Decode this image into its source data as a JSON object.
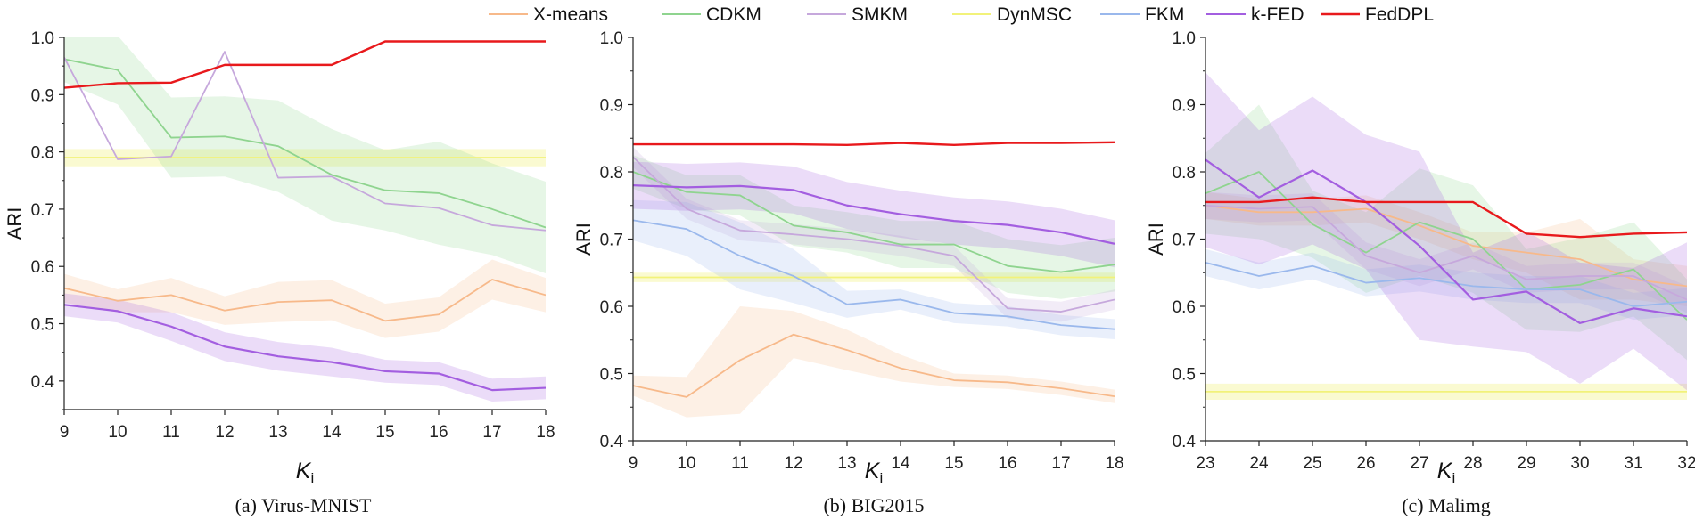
{
  "legend": [
    {
      "name": "X-means",
      "color": "#f7b98a"
    },
    {
      "name": "CDKM",
      "color": "#8fd48f"
    },
    {
      "name": "SMKM",
      "color": "#c6a8dc"
    },
    {
      "name": "DynMSC",
      "color": "#f2f27a"
    },
    {
      "name": "FKM",
      "color": "#9ab8ec"
    },
    {
      "name": "k-FED",
      "color": "#a35ee0"
    },
    {
      "name": "FedDPL",
      "color": "#e8191c"
    }
  ],
  "chart_data": [
    {
      "type": "line",
      "caption": "(a) Virus-MNIST",
      "xlabel": "K",
      "xlabel_sub": "i",
      "ylabel": "ARI",
      "x": [
        9,
        10,
        11,
        12,
        13,
        14,
        15,
        16,
        17,
        18
      ],
      "xlim": [
        9,
        18
      ],
      "ylim": [
        0.35,
        1.0
      ],
      "yticks": [
        0.4,
        0.5,
        0.6,
        0.7,
        0.8,
        0.9,
        1.0
      ],
      "series": [
        {
          "name": "X-means",
          "values": [
            0.562,
            0.54,
            0.55,
            0.523,
            0.538,
            0.541,
            0.505,
            0.516,
            0.577,
            0.55
          ],
          "band": [
            0.025,
            0.02,
            0.03,
            0.025,
            0.035,
            0.035,
            0.03,
            0.03,
            0.035,
            0.03
          ]
        },
        {
          "name": "CDKM",
          "values": [
            0.962,
            0.943,
            0.825,
            0.827,
            0.81,
            0.76,
            0.733,
            0.728,
            0.7,
            0.668
          ],
          "band": [
            0.04,
            0.06,
            0.07,
            0.07,
            0.08,
            0.08,
            0.07,
            0.09,
            0.08,
            0.08
          ]
        },
        {
          "name": "SMKM",
          "values": [
            0.965,
            0.787,
            0.792,
            0.975,
            0.755,
            0.757,
            0.71,
            0.702,
            0.672,
            0.663
          ],
          "band": [
            0,
            0,
            0,
            0,
            0,
            0,
            0,
            0,
            0,
            0
          ]
        },
        {
          "name": "DynMSC",
          "values": [
            0.79,
            0.79,
            0.79,
            0.79,
            0.79,
            0.79,
            0.79,
            0.79,
            0.79,
            0.79
          ],
          "band": [
            0.015,
            0.015,
            0.015,
            0.015,
            0.015,
            0.015,
            0.015,
            0.015,
            0.015,
            0.015
          ]
        },
        {
          "name": "k-FED",
          "values": [
            0.533,
            0.522,
            0.495,
            0.46,
            0.443,
            0.433,
            0.417,
            0.413,
            0.384,
            0.388
          ],
          "band": [
            0.02,
            0.02,
            0.025,
            0.025,
            0.025,
            0.025,
            0.02,
            0.02,
            0.02,
            0.02
          ]
        },
        {
          "name": "FedDPL",
          "values": [
            0.912,
            0.92,
            0.921,
            0.952,
            0.952,
            0.952,
            0.993,
            0.993,
            0.993,
            0.993
          ],
          "band": [
            0,
            0,
            0,
            0,
            0,
            0,
            0,
            0,
            0,
            0
          ]
        }
      ]
    },
    {
      "type": "line",
      "caption": "(b) BIG2015",
      "xlabel": "K",
      "xlabel_sub": "i",
      "ylabel": "ARI",
      "x": [
        9,
        10,
        11,
        12,
        13,
        14,
        15,
        16,
        17,
        18
      ],
      "xlim": [
        9,
        18
      ],
      "ylim": [
        0.4,
        1.0
      ],
      "yticks": [
        0.4,
        0.5,
        0.6,
        0.7,
        0.8,
        0.9,
        1.0
      ],
      "series": [
        {
          "name": "X-means",
          "values": [
            0.482,
            0.465,
            0.52,
            0.558,
            0.535,
            0.508,
            0.49,
            0.487,
            0.478,
            0.466
          ],
          "band": [
            0.015,
            0.03,
            0.08,
            0.035,
            0.03,
            0.02,
            0.01,
            0.01,
            0.01,
            0.01
          ]
        },
        {
          "name": "CDKM",
          "values": [
            0.8,
            0.77,
            0.765,
            0.72,
            0.71,
            0.692,
            0.692,
            0.66,
            0.651,
            0.662
          ],
          "band": [
            0.025,
            0.025,
            0.03,
            0.03,
            0.03,
            0.035,
            0.035,
            0.04,
            0.04,
            0.04
          ]
        },
        {
          "name": "SMKM",
          "values": [
            0.822,
            0.745,
            0.713,
            0.707,
            0.7,
            0.69,
            0.675,
            0.597,
            0.592,
            0.61
          ],
          "band": [
            0.015,
            0.015,
            0.015,
            0.015,
            0.015,
            0.015,
            0.015,
            0.015,
            0.015,
            0.015
          ]
        },
        {
          "name": "DynMSC",
          "values": [
            0.643,
            0.643,
            0.643,
            0.643,
            0.643,
            0.643,
            0.643,
            0.643,
            0.643,
            0.643
          ],
          "band": [
            0.007,
            0.007,
            0.007,
            0.007,
            0.007,
            0.007,
            0.007,
            0.007,
            0.007,
            0.007
          ]
        },
        {
          "name": "FKM",
          "values": [
            0.728,
            0.715,
            0.675,
            0.645,
            0.603,
            0.61,
            0.59,
            0.585,
            0.572,
            0.566
          ],
          "band": [
            0.03,
            0.04,
            0.05,
            0.04,
            0.02,
            0.015,
            0.015,
            0.015,
            0.015,
            0.015
          ]
        },
        {
          "name": "k-FED",
          "values": [
            0.78,
            0.777,
            0.779,
            0.773,
            0.75,
            0.737,
            0.727,
            0.721,
            0.71,
            0.693
          ],
          "band": [
            0.035,
            0.035,
            0.035,
            0.035,
            0.035,
            0.035,
            0.035,
            0.035,
            0.035,
            0.035
          ]
        },
        {
          "name": "FedDPL",
          "values": [
            0.841,
            0.841,
            0.841,
            0.841,
            0.84,
            0.843,
            0.84,
            0.843,
            0.843,
            0.844
          ],
          "band": [
            0,
            0,
            0,
            0,
            0,
            0,
            0,
            0,
            0,
            0
          ]
        }
      ]
    },
    {
      "type": "line",
      "caption": "(c) Malimg",
      "xlabel": "K",
      "xlabel_sub": "i",
      "ylabel": "ARI",
      "x": [
        23,
        24,
        25,
        26,
        27,
        28,
        29,
        30,
        31,
        32
      ],
      "xlim": [
        23,
        32
      ],
      "ylim": [
        0.4,
        1.0
      ],
      "yticks": [
        0.4,
        0.5,
        0.6,
        0.7,
        0.8,
        0.9,
        1.0
      ],
      "series": [
        {
          "name": "X-means",
          "values": [
            0.75,
            0.74,
            0.74,
            0.745,
            0.72,
            0.69,
            0.68,
            0.67,
            0.64,
            0.63
          ],
          "band": [
            0.02,
            0.02,
            0.02,
            0.02,
            0.02,
            0.02,
            0.03,
            0.06,
            0.03,
            0.03
          ]
        },
        {
          "name": "CDKM",
          "values": [
            0.768,
            0.8,
            0.722,
            0.68,
            0.725,
            0.7,
            0.625,
            0.632,
            0.655,
            0.58
          ],
          "band": [
            0.06,
            0.1,
            0.05,
            0.06,
            0.08,
            0.08,
            0.06,
            0.07,
            0.07,
            0.06
          ]
        },
        {
          "name": "SMKM",
          "values": [
            0.75,
            0.745,
            0.748,
            0.675,
            0.65,
            0.675,
            0.64,
            0.645,
            0.645,
            0.61
          ],
          "band": [
            0.02,
            0.02,
            0.02,
            0.02,
            0.02,
            0.02,
            0.02,
            0.02,
            0.02,
            0.02
          ]
        },
        {
          "name": "DynMSC",
          "values": [
            0.473,
            0.473,
            0.473,
            0.473,
            0.473,
            0.473,
            0.473,
            0.473,
            0.473,
            0.473
          ],
          "band": [
            0.012,
            0.012,
            0.012,
            0.012,
            0.012,
            0.012,
            0.012,
            0.012,
            0.012,
            0.012
          ]
        },
        {
          "name": "FKM",
          "values": [
            0.665,
            0.645,
            0.66,
            0.635,
            0.642,
            0.63,
            0.625,
            0.625,
            0.6,
            0.607
          ],
          "band": [
            0.02,
            0.02,
            0.02,
            0.02,
            0.02,
            0.02,
            0.02,
            0.02,
            0.02,
            0.02
          ]
        },
        {
          "name": "k-FED",
          "values": [
            0.818,
            0.762,
            0.802,
            0.755,
            0.69,
            0.61,
            0.622,
            0.575,
            0.597,
            0.585
          ],
          "band": [
            0.13,
            0.1,
            0.11,
            0.1,
            0.14,
            0.07,
            0.09,
            0.09,
            0.06,
            0.11
          ]
        },
        {
          "name": "FedDPL",
          "values": [
            0.755,
            0.755,
            0.762,
            0.755,
            0.755,
            0.755,
            0.708,
            0.703,
            0.708,
            0.71
          ],
          "band": [
            0,
            0,
            0,
            0,
            0,
            0,
            0,
            0,
            0,
            0
          ]
        }
      ]
    }
  ]
}
